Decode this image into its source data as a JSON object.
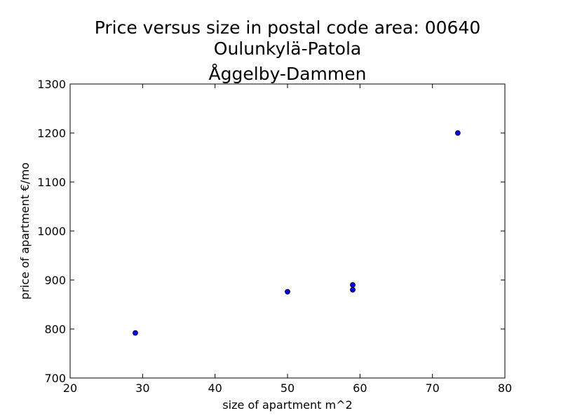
{
  "chart_data": {
    "type": "scatter",
    "title_lines": [
      "Price versus size in postal code area: 00640",
      "Oulunkylä-Patola",
      "Åggelby-Dammen"
    ],
    "xlabel": "size of apartment m^2",
    "ylabel": "price of apartment €/mo",
    "xlim": [
      20,
      80
    ],
    "ylim": [
      700,
      1300
    ],
    "xticks": [
      20,
      30,
      40,
      50,
      60,
      70,
      80
    ],
    "yticks": [
      700,
      800,
      900,
      1000,
      1100,
      1200,
      1300
    ],
    "grid": false,
    "marker_color": "#0000ff",
    "points": [
      {
        "x": 29,
        "y": 792
      },
      {
        "x": 50,
        "y": 876
      },
      {
        "x": 59,
        "y": 880
      },
      {
        "x": 59,
        "y": 890
      },
      {
        "x": 73.5,
        "y": 1200
      }
    ]
  }
}
